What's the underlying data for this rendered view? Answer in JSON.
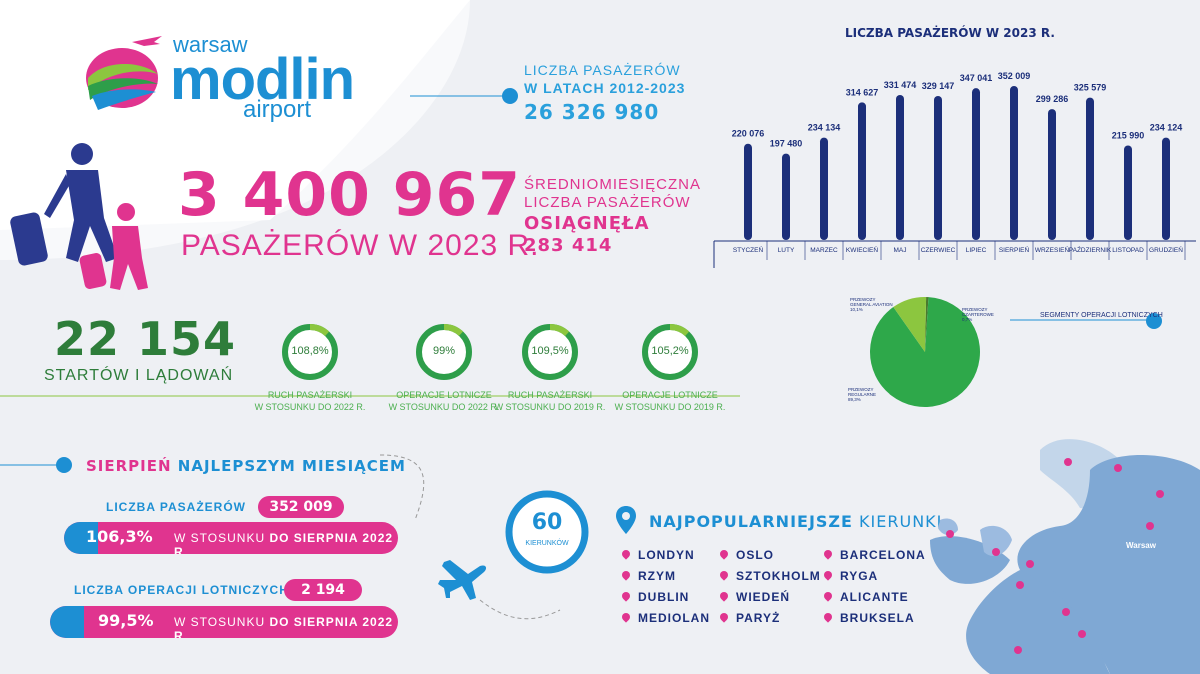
{
  "logo": {
    "line1": "warsaw",
    "line2": "modlin",
    "line3": "airport"
  },
  "total_years": {
    "line1": "LICZBA PASAŻERÓW",
    "line2": "W LATACH 2012-2023",
    "value": "26 326 980"
  },
  "headline": {
    "value": "3 400 967",
    "label": "PASAŻERÓW W 2023 R."
  },
  "monthly_avg": {
    "line1": "ŚREDNIOMIESIĘCZNA",
    "line2": "LICZBA PASAŻERÓW",
    "line3": "OSIĄGNĘŁA",
    "value": "283 414"
  },
  "operations": {
    "value": "22 154",
    "label": "STARTÓW I LĄDOWAŃ"
  },
  "rings": [
    {
      "value": "108,8%",
      "pct": 108.8,
      "line1": "RUCH PASAŻERSKI",
      "line2": "W STOSUNKU DO 2022 R."
    },
    {
      "value": "99%",
      "pct": 99,
      "line1": "OPERACJE LOTNICZE",
      "line2": "W STOSUNKU DO 2022 R."
    },
    {
      "value": "109,5%",
      "pct": 109.5,
      "line1": "RUCH PASAŻERSKI",
      "line2": "W STOSUNKU DO 2019 R."
    },
    {
      "value": "105,2%",
      "pct": 105.2,
      "line1": "OPERACJE LOTNICZE",
      "line2": "W STOSUNKU DO 2019 R."
    }
  ],
  "august": {
    "title_a": "SIERPIEŃ",
    "title_b": "NAJLEPSZYM MIESIĄCEM",
    "pax_label": "LICZBA PASAŻERÓW",
    "pax_value": "352 009",
    "pax_pct": "106,3%",
    "pax_cmp_a": "W STOSUNKU",
    "pax_cmp_b": "DO SIERPNIA 2022 R.",
    "ops_label": "LICZBA OPERACJI LOTNICZYCH",
    "ops_value": "2 194",
    "ops_pct": "99,5%",
    "ops_cmp_a": "W STOSUNKU",
    "ops_cmp_b": "DO SIERPNIA 2022 R."
  },
  "directions": {
    "count": "60",
    "count_label": "KIERUNKÓW",
    "title_a": "NAJPOPULARNIEJSZE",
    "title_b": "KIERUNKI",
    "cities": [
      "LONDYN",
      "RZYM",
      "DUBLIN",
      "MEDIOLAN",
      "OSLO",
      "SZTOKHOLM",
      "WIEDEŃ",
      "PARYŻ",
      "BARCELONA",
      "RYGA",
      "ALICANTE",
      "BRUKSELA"
    ]
  },
  "map": {
    "label": "Warsaw"
  },
  "colors": {
    "pink": "#e0348f",
    "blue": "#1d8fd3",
    "navy": "#1c2f7a",
    "green": "#2e7d3a",
    "pie_main": "#2ea84a",
    "pie_light": "#8cc63f"
  },
  "chart_data": [
    {
      "type": "bar",
      "title": "LICZBA PASAŻERÓW W 2023 R.",
      "categories": [
        "STYCZEŃ",
        "LUTY",
        "MARZEC",
        "KWIECIEŃ",
        "MAJ",
        "CZERWIEC",
        "LIPIEC",
        "SIERPIEŃ",
        "WRZESIEŃ",
        "PAŹDZIERNIK",
        "LISTOPAD",
        "GRUDZIEŃ"
      ],
      "values": [
        220076,
        197480,
        234134,
        314627,
        331474,
        329147,
        347041,
        352009,
        299286,
        325579,
        215990,
        234124
      ],
      "labels": [
        "220 076",
        "197 480",
        "234 134",
        "314 627",
        "331 474",
        "329 147",
        "347 041",
        "352 009",
        "299 286",
        "325 579",
        "215 990",
        "234 124"
      ],
      "ylim": [
        0,
        352009
      ]
    },
    {
      "type": "pie",
      "title": "SEGMENTY OPERACJI LOTNICZYCH",
      "slices": [
        {
          "name_a": "PRZEWOZY",
          "name_b": "REGULARNE",
          "label": "89,3%",
          "value": 89.3
        },
        {
          "name_a": "PRZEWOZY",
          "name_b": "GENERAL AVIATION",
          "label": "10,1%",
          "value": 10.1
        },
        {
          "name_a": "PRZEWOZY",
          "name_b": "CZARTEROWE",
          "label": "0,7%",
          "value": 0.7
        }
      ]
    }
  ]
}
